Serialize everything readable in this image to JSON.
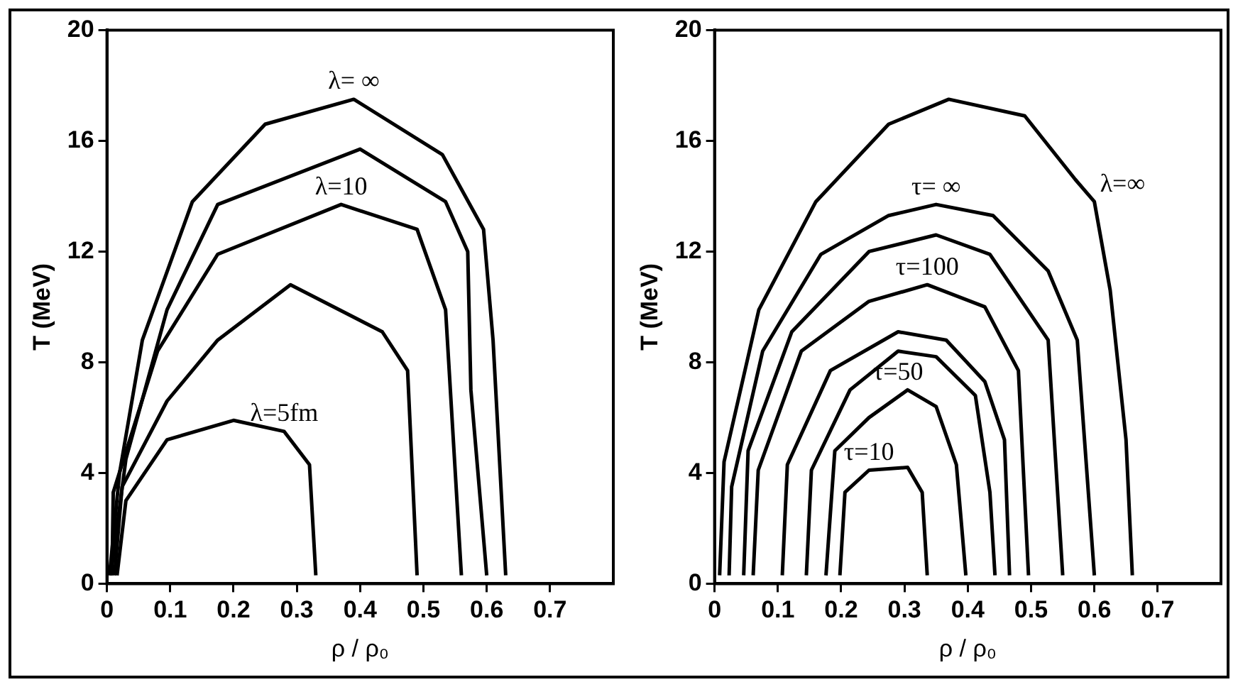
{
  "chart_data": [
    {
      "type": "line",
      "xlabel": "ρ / ρ₀",
      "ylabel": "T (MeV)",
      "xlim": [
        0,
        0.8
      ],
      "ylim": [
        0,
        20
      ],
      "xticks": [
        0,
        0.1,
        0.2,
        0.3,
        0.4,
        0.5,
        0.6,
        0.7
      ],
      "yticks": [
        0,
        4,
        8,
        12,
        16,
        20
      ],
      "grid": false,
      "legend": false,
      "marker": "none",
      "line_style": "solid",
      "series": [
        {
          "color": "#000000",
          "x": [
            0.004,
            0.02,
            0.056,
            0.135,
            0.25,
            0.39,
            0.53,
            0.595,
            0.61,
            0.63
          ],
          "values": [
            0.3,
            4.0,
            8.8,
            13.8,
            16.6,
            17.5,
            15.5,
            12.8,
            8.8,
            0.3
          ]
        },
        {
          "color": "#000000",
          "x": [
            0.006,
            0.03,
            0.095,
            0.175,
            0.4,
            0.535,
            0.57,
            0.575,
            0.6
          ],
          "values": [
            0.3,
            4.5,
            9.9,
            13.7,
            15.7,
            13.8,
            12.0,
            7.0,
            0.3
          ]
        },
        {
          "color": "#000000",
          "x": [
            0.008,
            0.01,
            0.08,
            0.175,
            0.37,
            0.49,
            0.535,
            0.56
          ],
          "values": [
            0.3,
            3.3,
            8.4,
            11.9,
            13.7,
            12.8,
            9.9,
            0.3
          ]
        },
        {
          "color": "#000000",
          "x": [
            0.012,
            0.024,
            0.095,
            0.175,
            0.29,
            0.435,
            0.475,
            0.49
          ],
          "values": [
            0.3,
            3.5,
            6.6,
            8.8,
            10.8,
            9.1,
            7.7,
            0.3
          ]
        },
        {
          "color": "#000000",
          "x": [
            0.016,
            0.03,
            0.095,
            0.2,
            0.28,
            0.32,
            0.33
          ],
          "values": [
            0.3,
            3.0,
            5.2,
            5.9,
            5.5,
            4.3,
            0.3
          ]
        }
      ],
      "annotations": [
        {
          "text": "λ= ∞",
          "x": 0.39,
          "y": 17.5
        },
        {
          "text": "λ=10",
          "x": 0.37,
          "y": 13.7
        },
        {
          "text": "λ=5fm",
          "x": 0.28,
          "y": 5.5
        }
      ]
    },
    {
      "type": "line",
      "xlabel": "ρ / ρ₀",
      "ylabel": "T (MeV)",
      "xlim": [
        0,
        0.8
      ],
      "ylim": [
        0,
        20
      ],
      "xticks": [
        0,
        0.1,
        0.2,
        0.3,
        0.4,
        0.5,
        0.6,
        0.7
      ],
      "yticks": [
        0,
        4,
        8,
        12,
        16,
        20
      ],
      "grid": false,
      "legend": false,
      "marker": "none",
      "line_style": "solid",
      "series": [
        {
          "color": "#000000",
          "x": [
            0.008,
            0.015,
            0.07,
            0.16,
            0.275,
            0.37,
            0.49,
            0.57,
            0.6,
            0.625,
            0.65,
            0.66
          ],
          "values": [
            0.3,
            4.4,
            9.9,
            13.8,
            16.6,
            17.5,
            16.9,
            14.6,
            13.8,
            10.6,
            5.2,
            0.3
          ]
        },
        {
          "color": "#000000",
          "x": [
            0.023,
            0.027,
            0.076,
            0.168,
            0.275,
            0.35,
            0.44,
            0.527,
            0.573,
            0.6
          ],
          "values": [
            0.3,
            3.5,
            8.4,
            11.9,
            13.3,
            13.7,
            13.3,
            11.3,
            8.8,
            0.3
          ]
        },
        {
          "color": "#000000",
          "x": [
            0.046,
            0.053,
            0.122,
            0.244,
            0.35,
            0.435,
            0.527,
            0.55
          ],
          "values": [
            0.3,
            4.8,
            9.1,
            12.0,
            12.6,
            11.9,
            8.8,
            0.3
          ]
        },
        {
          "color": "#000000",
          "x": [
            0.061,
            0.069,
            0.137,
            0.244,
            0.336,
            0.427,
            0.48,
            0.496
          ],
          "values": [
            0.3,
            4.1,
            8.4,
            10.2,
            10.8,
            10.0,
            7.7,
            0.3
          ]
        },
        {
          "color": "#000000",
          "x": [
            0.107,
            0.115,
            0.183,
            0.29,
            0.366,
            0.427,
            0.458,
            0.466
          ],
          "values": [
            0.3,
            4.3,
            7.7,
            9.1,
            8.8,
            7.3,
            5.2,
            0.3
          ]
        },
        {
          "color": "#000000",
          "x": [
            0.145,
            0.153,
            0.214,
            0.29,
            0.35,
            0.412,
            0.435,
            0.443
          ],
          "values": [
            0.3,
            4.1,
            7.0,
            8.4,
            8.2,
            6.8,
            3.3,
            0.3
          ]
        },
        {
          "color": "#000000",
          "x": [
            0.176,
            0.19,
            0.244,
            0.305,
            0.35,
            0.382,
            0.397
          ],
          "values": [
            0.3,
            4.8,
            6.0,
            7.0,
            6.4,
            4.3,
            0.3
          ]
        },
        {
          "color": "#000000",
          "x": [
            0.198,
            0.206,
            0.244,
            0.305,
            0.328,
            0.336
          ],
          "values": [
            0.3,
            3.3,
            4.1,
            4.2,
            3.3,
            0.3
          ]
        }
      ],
      "annotations": [
        {
          "text": "λ=∞",
          "x": 0.6,
          "y": 13.8
        },
        {
          "text": "τ= ∞",
          "x": 0.35,
          "y": 13.7
        },
        {
          "text": "τ=100",
          "x": 0.336,
          "y": 10.8
        },
        {
          "text": "τ=50",
          "x": 0.29,
          "y": 7.0
        },
        {
          "text": "τ=10",
          "x": 0.244,
          "y": 4.1
        }
      ]
    }
  ]
}
